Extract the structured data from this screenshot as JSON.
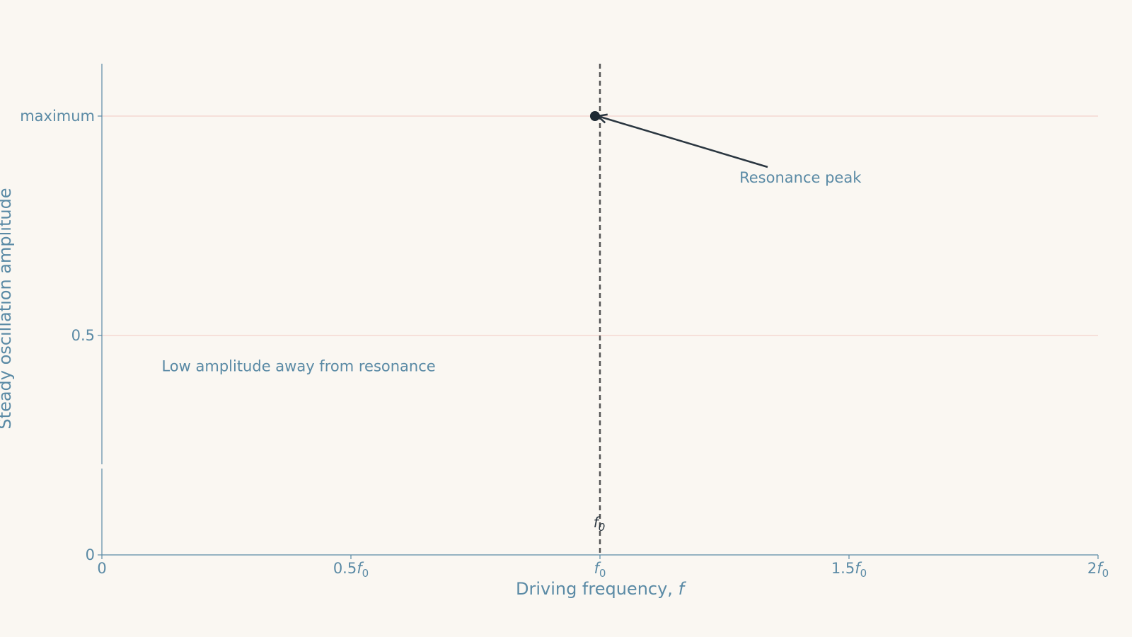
{
  "chart_data": {
    "type": "line",
    "xlabel": "Driving frequency, f",
    "ylabel": "Steady oscillation amplitude",
    "xlim": [
      0,
      2
    ],
    "ylim": [
      0,
      1.12
    ],
    "x_ticks": [
      {
        "value": 0,
        "label": "0"
      },
      {
        "value": 0.5,
        "label": "0.5f0"
      },
      {
        "value": 1,
        "label": "f0"
      },
      {
        "value": 1.5,
        "label": "1.5f0"
      },
      {
        "value": 2,
        "label": "2f0"
      }
    ],
    "y_ticks": [
      {
        "value": 0,
        "label": "0"
      },
      {
        "value": 0.5,
        "label": "0.5"
      },
      {
        "value": 1,
        "label": "maximum"
      }
    ],
    "grid": "horizontal",
    "reference_line": {
      "x": 1,
      "label": "f0",
      "style": "dashed"
    },
    "peak_point": {
      "x": 0.99,
      "y": 1
    },
    "annotations": [
      {
        "text": "Resonance peak",
        "x": 1.28,
        "y": 0.86,
        "arrow_to": {
          "x": 0.99,
          "y": 1
        }
      },
      {
        "text": "Low amplitude away from resonance",
        "x": 0.12,
        "y": 0.43
      }
    ],
    "colors": {
      "axis": "#5a8aa5",
      "grid": "#f5d8d2",
      "reference": "#555555",
      "point": "#1e2a33",
      "arrow": "#2a3640"
    }
  }
}
